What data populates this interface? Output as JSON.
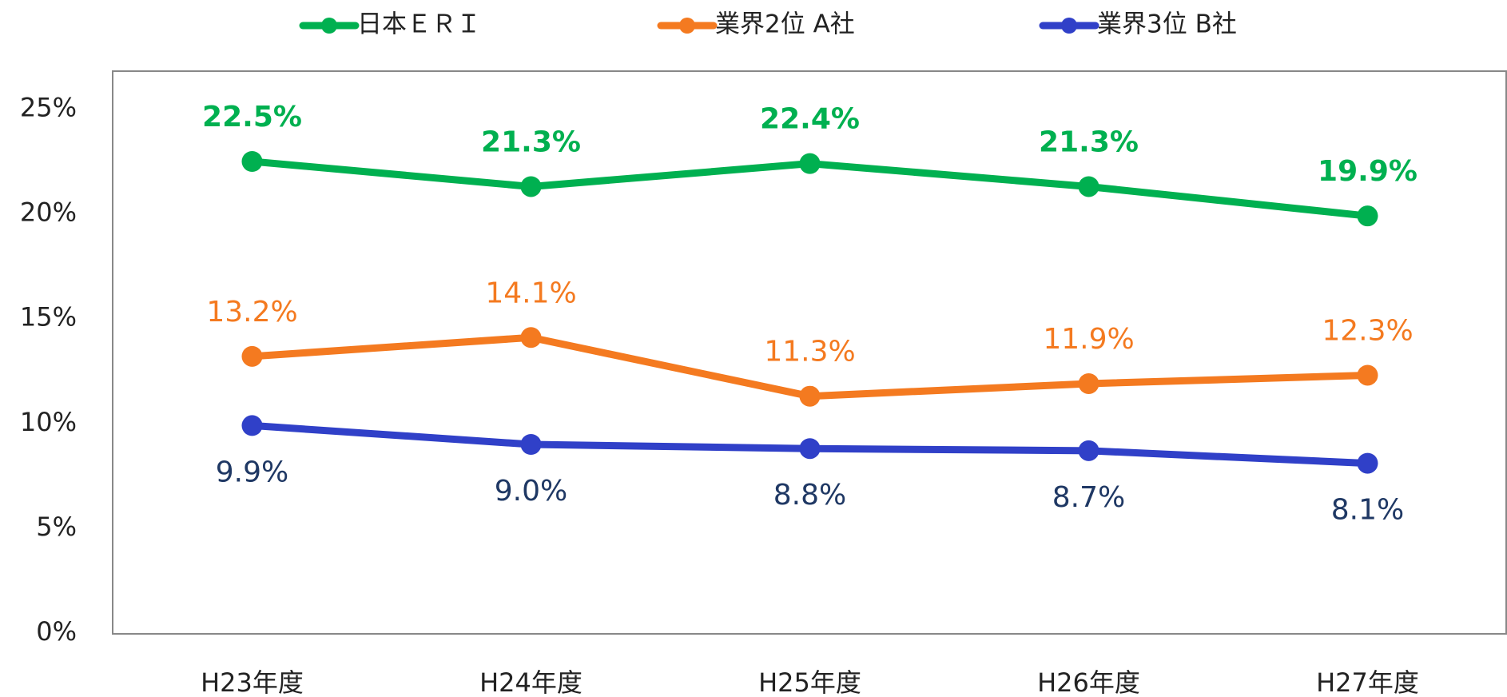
{
  "chart_data": {
    "type": "line",
    "categories": [
      "H23年度",
      "H24年度",
      "H25年度",
      "H26年度",
      "H27年度"
    ],
    "series": [
      {
        "name": "日本ＥＲＩ",
        "color": "#00b050",
        "label_color": "#00b050",
        "label_weight": "bold",
        "label_position": "above",
        "values": [
          22.5,
          21.3,
          22.4,
          21.3,
          19.9
        ],
        "value_labels": [
          "22.5%",
          "21.3%",
          "22.4%",
          "21.3%",
          "19.9%"
        ]
      },
      {
        "name": "業界2位 A社",
        "color": "#f47a20",
        "label_color": "#f47a20",
        "label_weight": "normal",
        "label_position": "above",
        "values": [
          13.2,
          14.1,
          11.3,
          11.9,
          12.3
        ],
        "value_labels": [
          "13.2%",
          "14.1%",
          "11.3%",
          "11.9%",
          "12.3%"
        ]
      },
      {
        "name": "業界3位 B社",
        "color": "#3040c8",
        "label_color": "#1f3864",
        "label_weight": "normal",
        "label_position": "below",
        "values": [
          9.9,
          9.0,
          8.8,
          8.7,
          8.1
        ],
        "value_labels": [
          "9.9%",
          "9.0%",
          "8.8%",
          "8.7%",
          "8.1%"
        ]
      }
    ],
    "ylim": [
      0,
      27
    ],
    "yticks": [
      {
        "value": 0,
        "label": "0%"
      },
      {
        "value": 5,
        "label": "5%"
      },
      {
        "value": 10,
        "label": "10%"
      },
      {
        "value": 15,
        "label": "15%"
      },
      {
        "value": 20,
        "label": "20%"
      },
      {
        "value": 25,
        "label": "25%"
      }
    ],
    "grid": false,
    "legend": "top"
  }
}
